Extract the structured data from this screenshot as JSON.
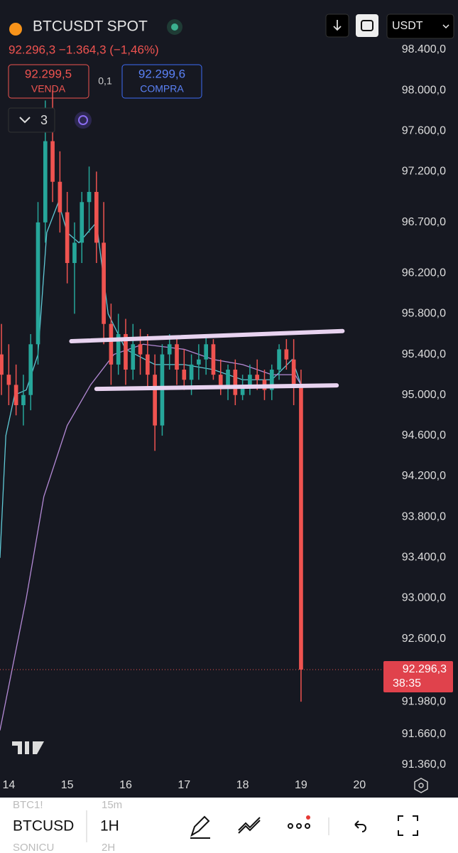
{
  "header": {
    "symbol": "BTCUSDT SPOT",
    "price_change": "92.296,3 −1.364,3 (−1,46%)",
    "sell_price": "92.299,5",
    "sell_label": "VENDA",
    "spread": "0,1",
    "buy_price": "92.299,6",
    "buy_label": "COMPRA",
    "indicator_count": "3",
    "currency": "USDT"
  },
  "chart_data": {
    "type": "candlestick",
    "up_color": "#26a69a",
    "down_color": "#ef5350",
    "x": [
      13.875,
      14,
      14.125,
      14.25,
      14.375,
      14.5,
      14.625,
      14.75,
      14.875,
      15,
      15.125,
      15.25,
      15.375,
      15.5,
      15.625,
      15.75,
      15.875,
      16,
      16.125,
      16.25,
      16.375,
      16.5,
      16.625,
      16.75,
      16.875,
      17,
      17.125,
      17.25,
      17.375,
      17.5,
      17.625,
      17.75,
      17.875,
      18,
      18.125,
      18.25,
      18.375,
      18.5,
      18.625,
      18.75,
      18.875,
      19
    ],
    "open": [
      95400,
      95200,
      95100,
      94900,
      95000,
      95500,
      96700,
      97500,
      97100,
      96800,
      96300,
      96500,
      96900,
      97000,
      96500,
      95700,
      95300,
      95600,
      95250,
      95500,
      95400,
      95200,
      94700,
      95400,
      95500,
      95250,
      95150,
      95300,
      95350,
      95500,
      95200,
      95100,
      95250,
      95000,
      95100,
      95200,
      95150,
      95050,
      95250,
      95450,
      95350,
      95100
    ],
    "high": [
      95700,
      95500,
      95300,
      95200,
      95600,
      96900,
      97900,
      98000,
      97400,
      97000,
      96700,
      97000,
      97250,
      97200,
      96900,
      95900,
      95800,
      95750,
      95700,
      95650,
      95600,
      95400,
      95500,
      95600,
      95550,
      95450,
      95400,
      95500,
      95600,
      95550,
      95350,
      95300,
      95350,
      95200,
      95300,
      95350,
      95250,
      95300,
      95500,
      95550,
      95550,
      95250
    ],
    "low": [
      95000,
      94900,
      94800,
      94700,
      94850,
      95300,
      96500,
      96900,
      96600,
      96100,
      95800,
      96300,
      96600,
      96300,
      95500,
      95100,
      95200,
      95100,
      95150,
      95200,
      95050,
      94450,
      94600,
      95250,
      95100,
      95050,
      95000,
      95150,
      95200,
      95150,
      95000,
      94950,
      94900,
      94950,
      95000,
      95050,
      94950,
      94950,
      95150,
      95250,
      94900,
      91980
    ],
    "close": [
      95200,
      95100,
      94900,
      95000,
      95500,
      96700,
      97500,
      97100,
      96800,
      96300,
      96500,
      96900,
      97000,
      96500,
      95700,
      95300,
      95600,
      95250,
      95500,
      95400,
      95200,
      94700,
      95400,
      95500,
      95250,
      95150,
      95300,
      95350,
      95500,
      95200,
      95100,
      95250,
      95000,
      95100,
      95200,
      95150,
      95050,
      95250,
      95450,
      95350,
      95100,
      92296.3
    ],
    "overlays": [
      {
        "color": "#5fc9d6",
        "x": [
          13.85,
          13.95,
          14.1,
          14.3,
          14.5,
          14.65,
          14.85,
          15,
          15.2,
          15.5,
          15.7,
          16,
          16.5,
          17,
          17.5,
          18,
          18.5,
          18.85,
          19
        ],
        "values": [
          93400,
          94600,
          95000,
          95050,
          95400,
          96600,
          96900,
          96600,
          96500,
          96700,
          95800,
          95450,
          95300,
          95300,
          95250,
          95150,
          95150,
          95350,
          95100
        ]
      },
      {
        "color": "#b48ad6",
        "x": [
          13.85,
          14.3,
          14.6,
          15,
          15.4,
          15.8,
          16.3,
          17,
          17.5,
          18,
          18.5,
          18.9,
          19
        ],
        "values": [
          91700,
          93000,
          94000,
          94700,
          95100,
          95400,
          95500,
          95450,
          95350,
          95300,
          95200,
          95200,
          95100
        ]
      }
    ],
    "drawings": [
      {
        "color": "#e8d3f0",
        "x": [
          15.07,
          19.71
        ],
        "values": [
          95530,
          95630
        ]
      },
      {
        "color": "#e8d3f0",
        "x": [
          15.5,
          19.61
        ],
        "values": [
          95060,
          95095
        ]
      }
    ],
    "xlim": [
      13.85,
      20.41
    ],
    "xticks": [
      14,
      15,
      16,
      17,
      18,
      19,
      20
    ],
    "ylim": [
      91260,
      98890
    ],
    "yticks": [
      {
        "value": 98400,
        "label": "98.400,0"
      },
      {
        "value": 98000,
        "label": "98.000,0"
      },
      {
        "value": 97600,
        "label": "97.600,0"
      },
      {
        "value": 97200,
        "label": "97.200,0"
      },
      {
        "value": 96700,
        "label": "96.700,0"
      },
      {
        "value": 96200,
        "label": "96.200,0"
      },
      {
        "value": 95800,
        "label": "95.800,0"
      },
      {
        "value": 95400,
        "label": "95.400,0"
      },
      {
        "value": 95000,
        "label": "95.000,0"
      },
      {
        "value": 94600,
        "label": "94.600,0"
      },
      {
        "value": 94200,
        "label": "94.200,0"
      },
      {
        "value": 93800,
        "label": "93.800,0"
      },
      {
        "value": 93400,
        "label": "93.400,0"
      },
      {
        "value": 93000,
        "label": "93.000,0"
      },
      {
        "value": 92600,
        "label": "92.600,0"
      },
      {
        "value": 91980,
        "label": "91.980,0"
      },
      {
        "value": 91660,
        "label": "91.660,0"
      },
      {
        "value": 91360,
        "label": "91.360,0"
      }
    ],
    "current_price": {
      "value": 92296.3,
      "label": "92.296,3",
      "countdown": "38:35"
    }
  },
  "footer": {
    "rows": [
      [
        "BTC1!",
        "15m"
      ],
      [
        "BTCUSD",
        "1H"
      ],
      [
        "SONICU",
        "2H"
      ]
    ]
  }
}
